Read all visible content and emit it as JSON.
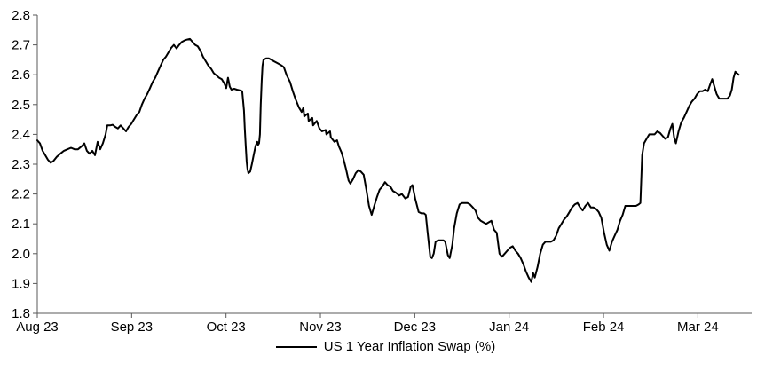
{
  "styles": {
    "background": "#ffffff",
    "axis_color": "#595959",
    "text_color": "#000000",
    "series_color": "#000000"
  },
  "chart_data": {
    "type": "line",
    "title": "",
    "xlabel": "",
    "ylabel": "",
    "grid": false,
    "legend_position": "bottom-center",
    "ylim": [
      1.8,
      2.8
    ],
    "ytick_step": 0.1,
    "y_ticks": [
      "1.8",
      "1.9",
      "2.0",
      "2.1",
      "2.2",
      "2.3",
      "2.4",
      "2.5",
      "2.6",
      "2.7",
      "2.8"
    ],
    "x_axis": {
      "unit": "months-from-Aug-2023",
      "xlim": [
        0,
        7.57
      ],
      "ticks": [
        {
          "pos": 0,
          "label": "Aug 23"
        },
        {
          "pos": 1,
          "label": "Sep 23"
        },
        {
          "pos": 2,
          "label": "Oct 23"
        },
        {
          "pos": 3,
          "label": "Nov 23"
        },
        {
          "pos": 4,
          "label": "Dec 23"
        },
        {
          "pos": 5,
          "label": "Jan 24"
        },
        {
          "pos": 6,
          "label": "Feb 24"
        },
        {
          "pos": 7,
          "label": "Mar 24"
        }
      ]
    },
    "series": [
      {
        "name": "US 1 Year Inflation Swap (%)",
        "color": "#000000",
        "points": [
          [
            0,
            2.38
          ],
          [
            0.028,
            2.37
          ],
          [
            0.056,
            2.345
          ],
          [
            0.085,
            2.33
          ],
          [
            0.113,
            2.315
          ],
          [
            0.141,
            2.305
          ],
          [
            0.169,
            2.31
          ],
          [
            0.207,
            2.325
          ],
          [
            0.244,
            2.335
          ],
          [
            0.282,
            2.345
          ],
          [
            0.32,
            2.35
          ],
          [
            0.357,
            2.355
          ],
          [
            0.395,
            2.35
          ],
          [
            0.432,
            2.35
          ],
          [
            0.47,
            2.36
          ],
          [
            0.498,
            2.37
          ],
          [
            0.526,
            2.345
          ],
          [
            0.554,
            2.335
          ],
          [
            0.583,
            2.345
          ],
          [
            0.611,
            2.33
          ],
          [
            0.639,
            2.375
          ],
          [
            0.667,
            2.35
          ],
          [
            0.695,
            2.37
          ],
          [
            0.724,
            2.4
          ],
          [
            0.742,
            2.43
          ],
          [
            0.771,
            2.43
          ],
          [
            0.799,
            2.432
          ],
          [
            0.827,
            2.425
          ],
          [
            0.855,
            2.42
          ],
          [
            0.883,
            2.43
          ],
          [
            0.912,
            2.42
          ],
          [
            0.94,
            2.41
          ],
          [
            0.968,
            2.425
          ],
          [
            0.996,
            2.435
          ],
          [
            1.024,
            2.45
          ],
          [
            1.053,
            2.465
          ],
          [
            1.081,
            2.475
          ],
          [
            1.109,
            2.5
          ],
          [
            1.137,
            2.52
          ],
          [
            1.165,
            2.535
          ],
          [
            1.194,
            2.555
          ],
          [
            1.222,
            2.575
          ],
          [
            1.25,
            2.59
          ],
          [
            1.278,
            2.61
          ],
          [
            1.306,
            2.63
          ],
          [
            1.335,
            2.65
          ],
          [
            1.363,
            2.66
          ],
          [
            1.391,
            2.675
          ],
          [
            1.419,
            2.69
          ],
          [
            1.447,
            2.7
          ],
          [
            1.476,
            2.688
          ],
          [
            1.504,
            2.7
          ],
          [
            1.532,
            2.71
          ],
          [
            1.56,
            2.715
          ],
          [
            1.588,
            2.718
          ],
          [
            1.617,
            2.72
          ],
          [
            1.645,
            2.71
          ],
          [
            1.673,
            2.7
          ],
          [
            1.701,
            2.695
          ],
          [
            1.729,
            2.68
          ],
          [
            1.757,
            2.66
          ],
          [
            1.786,
            2.645
          ],
          [
            1.814,
            2.63
          ],
          [
            1.842,
            2.62
          ],
          [
            1.87,
            2.605
          ],
          [
            1.898,
            2.598
          ],
          [
            1.927,
            2.59
          ],
          [
            1.955,
            2.585
          ],
          [
            1.983,
            2.57
          ],
          [
            2.002,
            2.555
          ],
          [
            2.021,
            2.59
          ],
          [
            2.04,
            2.56
          ],
          [
            2.058,
            2.55
          ],
          [
            2.087,
            2.553
          ],
          [
            2.115,
            2.55
          ],
          [
            2.143,
            2.548
          ],
          [
            2.171,
            2.545
          ],
          [
            2.19,
            2.48
          ],
          [
            2.199,
            2.42
          ],
          [
            2.209,
            2.36
          ],
          [
            2.218,
            2.31
          ],
          [
            2.227,
            2.285
          ],
          [
            2.237,
            2.27
          ],
          [
            2.256,
            2.275
          ],
          [
            2.274,
            2.3
          ],
          [
            2.293,
            2.33
          ],
          [
            2.312,
            2.36
          ],
          [
            2.331,
            2.375
          ],
          [
            2.34,
            2.365
          ],
          [
            2.35,
            2.37
          ],
          [
            2.359,
            2.4
          ],
          [
            2.368,
            2.5
          ],
          [
            2.378,
            2.58
          ],
          [
            2.387,
            2.63
          ],
          [
            2.397,
            2.65
          ],
          [
            2.425,
            2.655
          ],
          [
            2.453,
            2.655
          ],
          [
            2.481,
            2.65
          ],
          [
            2.509,
            2.645
          ],
          [
            2.538,
            2.64
          ],
          [
            2.566,
            2.635
          ],
          [
            2.594,
            2.63
          ],
          [
            2.613,
            2.625
          ],
          [
            2.641,
            2.6
          ],
          [
            2.679,
            2.575
          ],
          [
            2.707,
            2.545
          ],
          [
            2.735,
            2.52
          ],
          [
            2.773,
            2.49
          ],
          [
            2.801,
            2.475
          ],
          [
            2.82,
            2.49
          ],
          [
            2.829,
            2.46
          ],
          [
            2.867,
            2.47
          ],
          [
            2.876,
            2.445
          ],
          [
            2.914,
            2.455
          ],
          [
            2.923,
            2.43
          ],
          [
            2.961,
            2.445
          ],
          [
            2.989,
            2.42
          ],
          [
            3.017,
            2.41
          ],
          [
            3.055,
            2.415
          ],
          [
            3.064,
            2.4
          ],
          [
            3.102,
            2.41
          ],
          [
            3.111,
            2.39
          ],
          [
            3.148,
            2.375
          ],
          [
            3.177,
            2.38
          ],
          [
            3.195,
            2.36
          ],
          [
            3.224,
            2.34
          ],
          [
            3.242,
            2.32
          ],
          [
            3.271,
            2.285
          ],
          [
            3.299,
            2.245
          ],
          [
            3.318,
            2.235
          ],
          [
            3.346,
            2.25
          ],
          [
            3.374,
            2.27
          ],
          [
            3.402,
            2.28
          ],
          [
            3.43,
            2.275
          ],
          [
            3.459,
            2.265
          ],
          [
            3.487,
            2.215
          ],
          [
            3.515,
            2.16
          ],
          [
            3.543,
            2.13
          ],
          [
            3.571,
            2.16
          ],
          [
            3.6,
            2.19
          ],
          [
            3.628,
            2.215
          ],
          [
            3.656,
            2.225
          ],
          [
            3.684,
            2.24
          ],
          [
            3.712,
            2.23
          ],
          [
            3.741,
            2.225
          ],
          [
            3.769,
            2.21
          ],
          [
            3.797,
            2.205
          ],
          [
            3.835,
            2.195
          ],
          [
            3.863,
            2.2
          ],
          [
            3.9,
            2.185
          ],
          [
            3.929,
            2.19
          ],
          [
            3.957,
            2.225
          ],
          [
            3.975,
            2.23
          ],
          [
            4.004,
            2.185
          ],
          [
            4.041,
            2.14
          ],
          [
            4.07,
            2.135
          ],
          [
            4.098,
            2.135
          ],
          [
            4.117,
            2.13
          ],
          [
            4.135,
            2.075
          ],
          [
            4.164,
            1.99
          ],
          [
            4.182,
            1.985
          ],
          [
            4.201,
            2.0
          ],
          [
            4.22,
            2.04
          ],
          [
            4.248,
            2.045
          ],
          [
            4.276,
            2.045
          ],
          [
            4.304,
            2.045
          ],
          [
            4.323,
            2.04
          ],
          [
            4.351,
            1.995
          ],
          [
            4.37,
            1.985
          ],
          [
            4.398,
            2.03
          ],
          [
            4.417,
            2.085
          ],
          [
            4.445,
            2.135
          ],
          [
            4.474,
            2.165
          ],
          [
            4.502,
            2.17
          ],
          [
            4.53,
            2.17
          ],
          [
            4.558,
            2.17
          ],
          [
            4.586,
            2.165
          ],
          [
            4.615,
            2.155
          ],
          [
            4.643,
            2.145
          ],
          [
            4.671,
            2.12
          ],
          [
            4.699,
            2.11
          ],
          [
            4.727,
            2.105
          ],
          [
            4.756,
            2.1
          ],
          [
            4.784,
            2.105
          ],
          [
            4.812,
            2.11
          ],
          [
            4.84,
            2.08
          ],
          [
            4.868,
            2.07
          ],
          [
            4.897,
            2.0
          ],
          [
            4.925,
            1.99
          ],
          [
            4.953,
            2.0
          ],
          [
            4.981,
            2.01
          ],
          [
            5.009,
            2.02
          ],
          [
            5.038,
            2.025
          ],
          [
            5.066,
            2.01
          ],
          [
            5.094,
            2.0
          ],
          [
            5.122,
            1.985
          ],
          [
            5.15,
            1.965
          ],
          [
            5.179,
            1.94
          ],
          [
            5.207,
            1.92
          ],
          [
            5.235,
            1.905
          ],
          [
            5.254,
            1.935
          ],
          [
            5.272,
            1.92
          ],
          [
            5.301,
            1.955
          ],
          [
            5.329,
            2.0
          ],
          [
            5.357,
            2.03
          ],
          [
            5.385,
            2.04
          ],
          [
            5.414,
            2.04
          ],
          [
            5.442,
            2.04
          ],
          [
            5.47,
            2.045
          ],
          [
            5.498,
            2.06
          ],
          [
            5.526,
            2.085
          ],
          [
            5.555,
            2.1
          ],
          [
            5.583,
            2.115
          ],
          [
            5.611,
            2.125
          ],
          [
            5.639,
            2.14
          ],
          [
            5.667,
            2.155
          ],
          [
            5.695,
            2.165
          ],
          [
            5.724,
            2.17
          ],
          [
            5.752,
            2.155
          ],
          [
            5.78,
            2.145
          ],
          [
            5.808,
            2.16
          ],
          [
            5.836,
            2.17
          ],
          [
            5.865,
            2.155
          ],
          [
            5.893,
            2.155
          ],
          [
            5.921,
            2.15
          ],
          [
            5.949,
            2.14
          ],
          [
            5.977,
            2.12
          ],
          [
            6.006,
            2.07
          ],
          [
            6.034,
            2.03
          ],
          [
            6.062,
            2.01
          ],
          [
            6.09,
            2.04
          ],
          [
            6.118,
            2.06
          ],
          [
            6.147,
            2.08
          ],
          [
            6.175,
            2.11
          ],
          [
            6.203,
            2.13
          ],
          [
            6.231,
            2.16
          ],
          [
            6.259,
            2.16
          ],
          [
            6.287,
            2.16
          ],
          [
            6.316,
            2.16
          ],
          [
            6.344,
            2.16
          ],
          [
            6.372,
            2.165
          ],
          [
            6.391,
            2.17
          ],
          [
            6.41,
            2.33
          ],
          [
            6.429,
            2.37
          ],
          [
            6.457,
            2.385
          ],
          [
            6.485,
            2.4
          ],
          [
            6.513,
            2.4
          ],
          [
            6.541,
            2.4
          ],
          [
            6.569,
            2.41
          ],
          [
            6.598,
            2.405
          ],
          [
            6.626,
            2.395
          ],
          [
            6.654,
            2.385
          ],
          [
            6.682,
            2.39
          ],
          [
            6.71,
            2.42
          ],
          [
            6.729,
            2.435
          ],
          [
            6.748,
            2.39
          ],
          [
            6.767,
            2.37
          ],
          [
            6.795,
            2.41
          ],
          [
            6.823,
            2.44
          ],
          [
            6.851,
            2.455
          ],
          [
            6.88,
            2.475
          ],
          [
            6.908,
            2.495
          ],
          [
            6.936,
            2.51
          ],
          [
            6.964,
            2.52
          ],
          [
            6.992,
            2.535
          ],
          [
            7.021,
            2.545
          ],
          [
            7.049,
            2.545
          ],
          [
            7.077,
            2.55
          ],
          [
            7.105,
            2.545
          ],
          [
            7.133,
            2.57
          ],
          [
            7.152,
            2.585
          ],
          [
            7.18,
            2.555
          ],
          [
            7.199,
            2.535
          ],
          [
            7.227,
            2.52
          ],
          [
            7.256,
            2.52
          ],
          [
            7.284,
            2.52
          ],
          [
            7.312,
            2.52
          ],
          [
            7.34,
            2.53
          ],
          [
            7.359,
            2.55
          ],
          [
            7.378,
            2.59
          ],
          [
            7.397,
            2.61
          ],
          [
            7.415,
            2.605
          ],
          [
            7.434,
            2.6
          ]
        ]
      }
    ]
  }
}
